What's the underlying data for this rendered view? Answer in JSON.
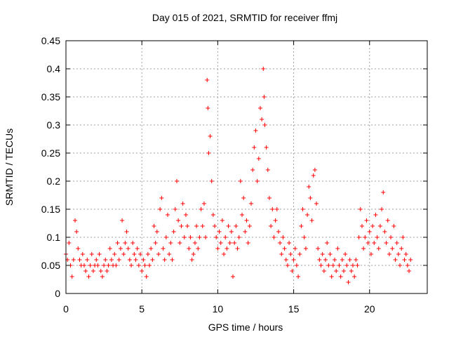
{
  "chart_data": {
    "type": "scatter",
    "title": "Day 015 of 2021, SRMTID for receiver ffmj",
    "xlabel": "GPS time / hours",
    "ylabel": "SRMTID / TECUs",
    "xlim": [
      0,
      23.8
    ],
    "ylim": [
      0,
      0.45
    ],
    "xticks": [
      0,
      5,
      10,
      15,
      20
    ],
    "xtick_labels": [
      "0",
      "5",
      "10",
      "15",
      "20"
    ],
    "yticks": [
      0,
      0.05,
      0.1,
      0.15,
      0.2,
      0.25,
      0.3,
      0.35,
      0.4,
      0.45
    ],
    "ytick_labels": [
      "0",
      "0.05",
      "0.1",
      "0.15",
      "0.2",
      "0.25",
      "0.3",
      "0.35",
      "0.4",
      "0.45"
    ],
    "grid": true,
    "marker": "plus",
    "color": "#ff0000",
    "series": [
      {
        "name": "SRMTID",
        "points": [
          [
            0.0,
            0.07
          ],
          [
            0.1,
            0.06
          ],
          [
            0.2,
            0.09
          ],
          [
            0.3,
            0.05
          ],
          [
            0.4,
            0.03
          ],
          [
            0.5,
            0.06
          ],
          [
            0.6,
            0.13
          ],
          [
            0.7,
            0.11
          ],
          [
            0.8,
            0.08
          ],
          [
            0.9,
            0.06
          ],
          [
            1.0,
            0.05
          ],
          [
            1.1,
            0.07
          ],
          [
            1.2,
            0.05
          ],
          [
            1.3,
            0.04
          ],
          [
            1.4,
            0.06
          ],
          [
            1.5,
            0.03
          ],
          [
            1.6,
            0.05
          ],
          [
            1.7,
            0.07
          ],
          [
            1.8,
            0.04
          ],
          [
            1.9,
            0.05
          ],
          [
            2.0,
            0.06
          ],
          [
            2.1,
            0.05
          ],
          [
            2.2,
            0.07
          ],
          [
            2.3,
            0.04
          ],
          [
            2.4,
            0.03
          ],
          [
            2.5,
            0.05
          ],
          [
            2.6,
            0.06
          ],
          [
            2.7,
            0.04
          ],
          [
            2.8,
            0.05
          ],
          [
            2.9,
            0.08
          ],
          [
            3.0,
            0.06
          ],
          [
            3.1,
            0.05
          ],
          [
            3.2,
            0.07
          ],
          [
            3.3,
            0.05
          ],
          [
            3.4,
            0.09
          ],
          [
            3.5,
            0.06
          ],
          [
            3.6,
            0.08
          ],
          [
            3.7,
            0.13
          ],
          [
            3.8,
            0.07
          ],
          [
            3.9,
            0.09
          ],
          [
            4.0,
            0.11
          ],
          [
            4.1,
            0.08
          ],
          [
            4.2,
            0.06
          ],
          [
            4.3,
            0.05
          ],
          [
            4.4,
            0.09
          ],
          [
            4.5,
            0.07
          ],
          [
            4.6,
            0.06
          ],
          [
            4.7,
            0.08
          ],
          [
            4.8,
            0.05
          ],
          [
            4.9,
            0.07
          ],
          [
            5.0,
            0.04
          ],
          [
            5.1,
            0.06
          ],
          [
            5.2,
            0.05
          ],
          [
            5.3,
            0.03
          ],
          [
            5.4,
            0.07
          ],
          [
            5.5,
            0.05
          ],
          [
            5.6,
            0.08
          ],
          [
            5.7,
            0.06
          ],
          [
            5.8,
            0.12
          ],
          [
            5.9,
            0.09
          ],
          [
            6.0,
            0.11
          ],
          [
            6.1,
            0.07
          ],
          [
            6.2,
            0.15
          ],
          [
            6.3,
            0.17
          ],
          [
            6.4,
            0.08
          ],
          [
            6.5,
            0.06
          ],
          [
            6.6,
            0.1
          ],
          [
            6.7,
            0.14
          ],
          [
            6.8,
            0.07
          ],
          [
            6.9,
            0.09
          ],
          [
            7.0,
            0.06
          ],
          [
            7.1,
            0.11
          ],
          [
            7.2,
            0.15
          ],
          [
            7.3,
            0.2
          ],
          [
            7.4,
            0.13
          ],
          [
            7.5,
            0.09
          ],
          [
            7.6,
            0.12
          ],
          [
            7.7,
            0.16
          ],
          [
            7.8,
            0.1
          ],
          [
            7.9,
            0.14
          ],
          [
            8.0,
            0.12
          ],
          [
            8.1,
            0.08
          ],
          [
            8.2,
            0.1
          ],
          [
            8.3,
            0.06
          ],
          [
            8.4,
            0.07
          ],
          [
            8.5,
            0.09
          ],
          [
            8.6,
            0.12
          ],
          [
            8.7,
            0.08
          ],
          [
            8.8,
            0.1
          ],
          [
            8.9,
            0.15
          ],
          [
            9.0,
            0.12
          ],
          [
            9.1,
            0.16
          ],
          [
            9.2,
            0.1
          ],
          [
            9.3,
            0.38
          ],
          [
            9.35,
            0.33
          ],
          [
            9.4,
            0.25
          ],
          [
            9.5,
            0.28
          ],
          [
            9.6,
            0.2
          ],
          [
            9.7,
            0.14
          ],
          [
            9.8,
            0.12
          ],
          [
            9.9,
            0.1
          ],
          [
            10.0,
            0.08
          ],
          [
            10.1,
            0.11
          ],
          [
            10.2,
            0.09
          ],
          [
            10.3,
            0.13
          ],
          [
            10.4,
            0.07
          ],
          [
            10.5,
            0.1
          ],
          [
            10.6,
            0.08
          ],
          [
            10.7,
            0.12
          ],
          [
            10.8,
            0.09
          ],
          [
            10.9,
            0.11
          ],
          [
            11.0,
            0.03
          ],
          [
            11.1,
            0.09
          ],
          [
            11.2,
            0.12
          ],
          [
            11.3,
            0.08
          ],
          [
            11.4,
            0.1
          ],
          [
            11.5,
            0.2
          ],
          [
            11.6,
            0.14
          ],
          [
            11.7,
            0.17
          ],
          [
            11.8,
            0.11
          ],
          [
            11.9,
            0.13
          ],
          [
            12.0,
            0.09
          ],
          [
            12.1,
            0.12
          ],
          [
            12.2,
            0.16
          ],
          [
            12.3,
            0.22
          ],
          [
            12.4,
            0.26
          ],
          [
            12.5,
            0.29
          ],
          [
            12.6,
            0.2
          ],
          [
            12.7,
            0.24
          ],
          [
            12.8,
            0.33
          ],
          [
            12.9,
            0.31
          ],
          [
            13.0,
            0.4
          ],
          [
            13.05,
            0.35
          ],
          [
            13.1,
            0.3
          ],
          [
            13.2,
            0.26
          ],
          [
            13.3,
            0.22
          ],
          [
            13.4,
            0.17
          ],
          [
            13.5,
            0.12
          ],
          [
            13.6,
            0.15
          ],
          [
            13.7,
            0.1
          ],
          [
            13.8,
            0.13
          ],
          [
            13.9,
            0.15
          ],
          [
            14.0,
            0.11
          ],
          [
            14.1,
            0.09
          ],
          [
            14.2,
            0.07
          ],
          [
            14.3,
            0.1
          ],
          [
            14.4,
            0.08
          ],
          [
            14.5,
            0.06
          ],
          [
            14.6,
            0.05
          ],
          [
            14.7,
            0.09
          ],
          [
            14.8,
            0.07
          ],
          [
            14.9,
            0.04
          ],
          [
            15.0,
            0.06
          ],
          [
            15.1,
            0.08
          ],
          [
            15.2,
            0.05
          ],
          [
            15.3,
            0.03
          ],
          [
            15.4,
            0.07
          ],
          [
            15.5,
            0.12
          ],
          [
            15.6,
            0.15
          ],
          [
            15.7,
            0.1
          ],
          [
            15.8,
            0.08
          ],
          [
            15.9,
            0.14
          ],
          [
            16.0,
            0.19
          ],
          [
            16.1,
            0.17
          ],
          [
            16.2,
            0.13
          ],
          [
            16.3,
            0.21
          ],
          [
            16.4,
            0.22
          ],
          [
            16.5,
            0.16
          ],
          [
            16.6,
            0.08
          ],
          [
            16.7,
            0.06
          ],
          [
            16.8,
            0.05
          ],
          [
            16.9,
            0.07
          ],
          [
            17.0,
            0.04
          ],
          [
            17.1,
            0.06
          ],
          [
            17.2,
            0.09
          ],
          [
            17.3,
            0.05
          ],
          [
            17.4,
            0.07
          ],
          [
            17.5,
            0.03
          ],
          [
            17.6,
            0.05
          ],
          [
            17.7,
            0.06
          ],
          [
            17.8,
            0.04
          ],
          [
            17.9,
            0.08
          ],
          [
            18.0,
            0.05
          ],
          [
            18.1,
            0.03
          ],
          [
            18.2,
            0.06
          ],
          [
            18.3,
            0.04
          ],
          [
            18.4,
            0.07
          ],
          [
            18.5,
            0.05
          ],
          [
            18.6,
            0.02
          ],
          [
            18.7,
            0.06
          ],
          [
            18.8,
            0.04
          ],
          [
            18.9,
            0.05
          ],
          [
            19.0,
            0.03
          ],
          [
            19.1,
            0.06
          ],
          [
            19.2,
            0.05
          ],
          [
            19.3,
            0.1
          ],
          [
            19.4,
            0.15
          ],
          [
            19.5,
            0.12
          ],
          [
            19.6,
            0.08
          ],
          [
            19.7,
            0.1
          ],
          [
            19.8,
            0.13
          ],
          [
            19.9,
            0.09
          ],
          [
            20.0,
            0.11
          ],
          [
            20.1,
            0.07
          ],
          [
            20.2,
            0.12
          ],
          [
            20.3,
            0.09
          ],
          [
            20.4,
            0.14
          ],
          [
            20.5,
            0.1
          ],
          [
            20.6,
            0.08
          ],
          [
            20.7,
            0.12
          ],
          [
            20.8,
            0.15
          ],
          [
            20.9,
            0.18
          ],
          [
            21.0,
            0.11
          ],
          [
            21.1,
            0.09
          ],
          [
            21.2,
            0.13
          ],
          [
            21.3,
            0.07
          ],
          [
            21.4,
            0.1
          ],
          [
            21.5,
            0.08
          ],
          [
            21.6,
            0.12
          ],
          [
            21.7,
            0.06
          ],
          [
            21.8,
            0.09
          ],
          [
            21.9,
            0.07
          ],
          [
            22.0,
            0.05
          ],
          [
            22.1,
            0.08
          ],
          [
            22.2,
            0.1
          ],
          [
            22.3,
            0.06
          ],
          [
            22.4,
            0.07
          ],
          [
            22.5,
            0.05
          ],
          [
            22.6,
            0.04
          ],
          [
            22.7,
            0.06
          ]
        ]
      }
    ]
  }
}
